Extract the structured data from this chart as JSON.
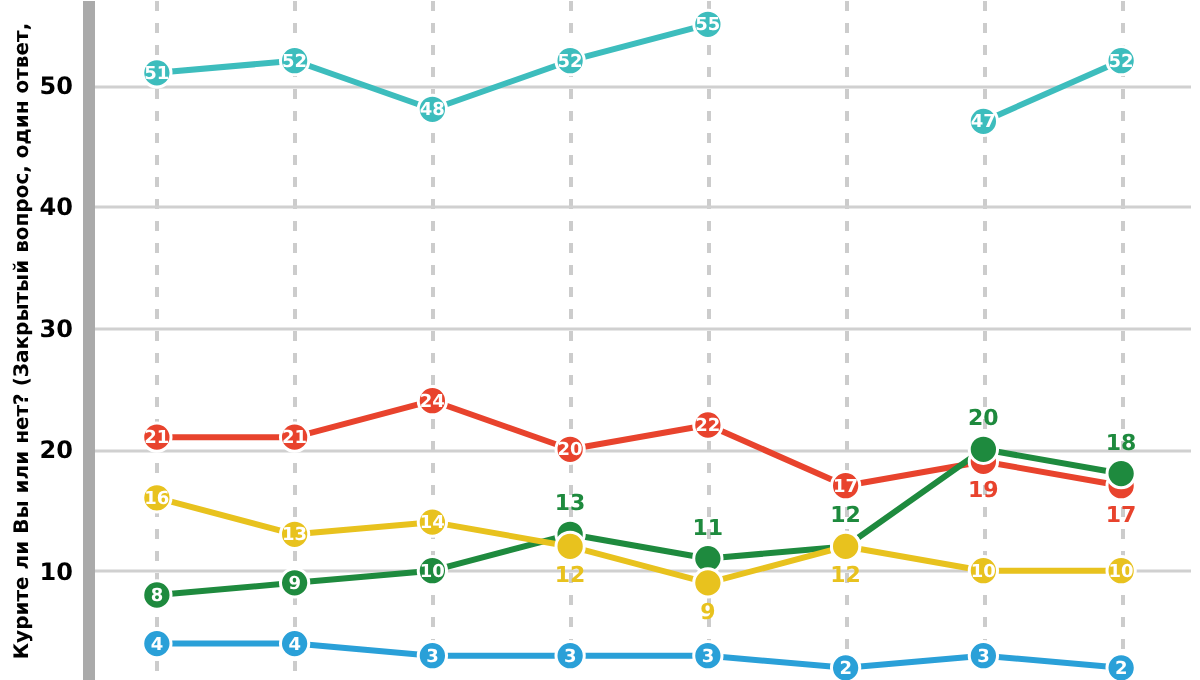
{
  "chart_data": {
    "type": "line",
    "ylabel": "Курите ли Вы или нет? (Закрытый вопрос, один ответ,",
    "categories": [
      null,
      null,
      null,
      null,
      null,
      null,
      null,
      null
    ],
    "series": [
      {
        "color": "#3dbdbd",
        "values": [
          51,
          52,
          48,
          52,
          55,
          null,
          47,
          52
        ]
      },
      {
        "color": "#e8432d",
        "values": [
          21,
          21,
          24,
          20,
          22,
          17,
          19,
          17
        ]
      },
      {
        "color": "#1e8a3e",
        "values": [
          8,
          9,
          10,
          13,
          11,
          12,
          20,
          18
        ]
      },
      {
        "color": "#e8c21e",
        "values": [
          16,
          13,
          14,
          12,
          9,
          12,
          10,
          10
        ]
      },
      {
        "color": "#2aa0d8",
        "values": [
          4,
          4,
          3,
          3,
          3,
          2,
          3,
          2
        ]
      }
    ],
    "ylim": [
      1,
      57
    ],
    "yticks": [
      10,
      20,
      30,
      40,
      50
    ],
    "grid": true,
    "tick_labels": "y",
    "marker": "circle",
    "line_style": "solid",
    "data_labels": true,
    "legend": false
  }
}
